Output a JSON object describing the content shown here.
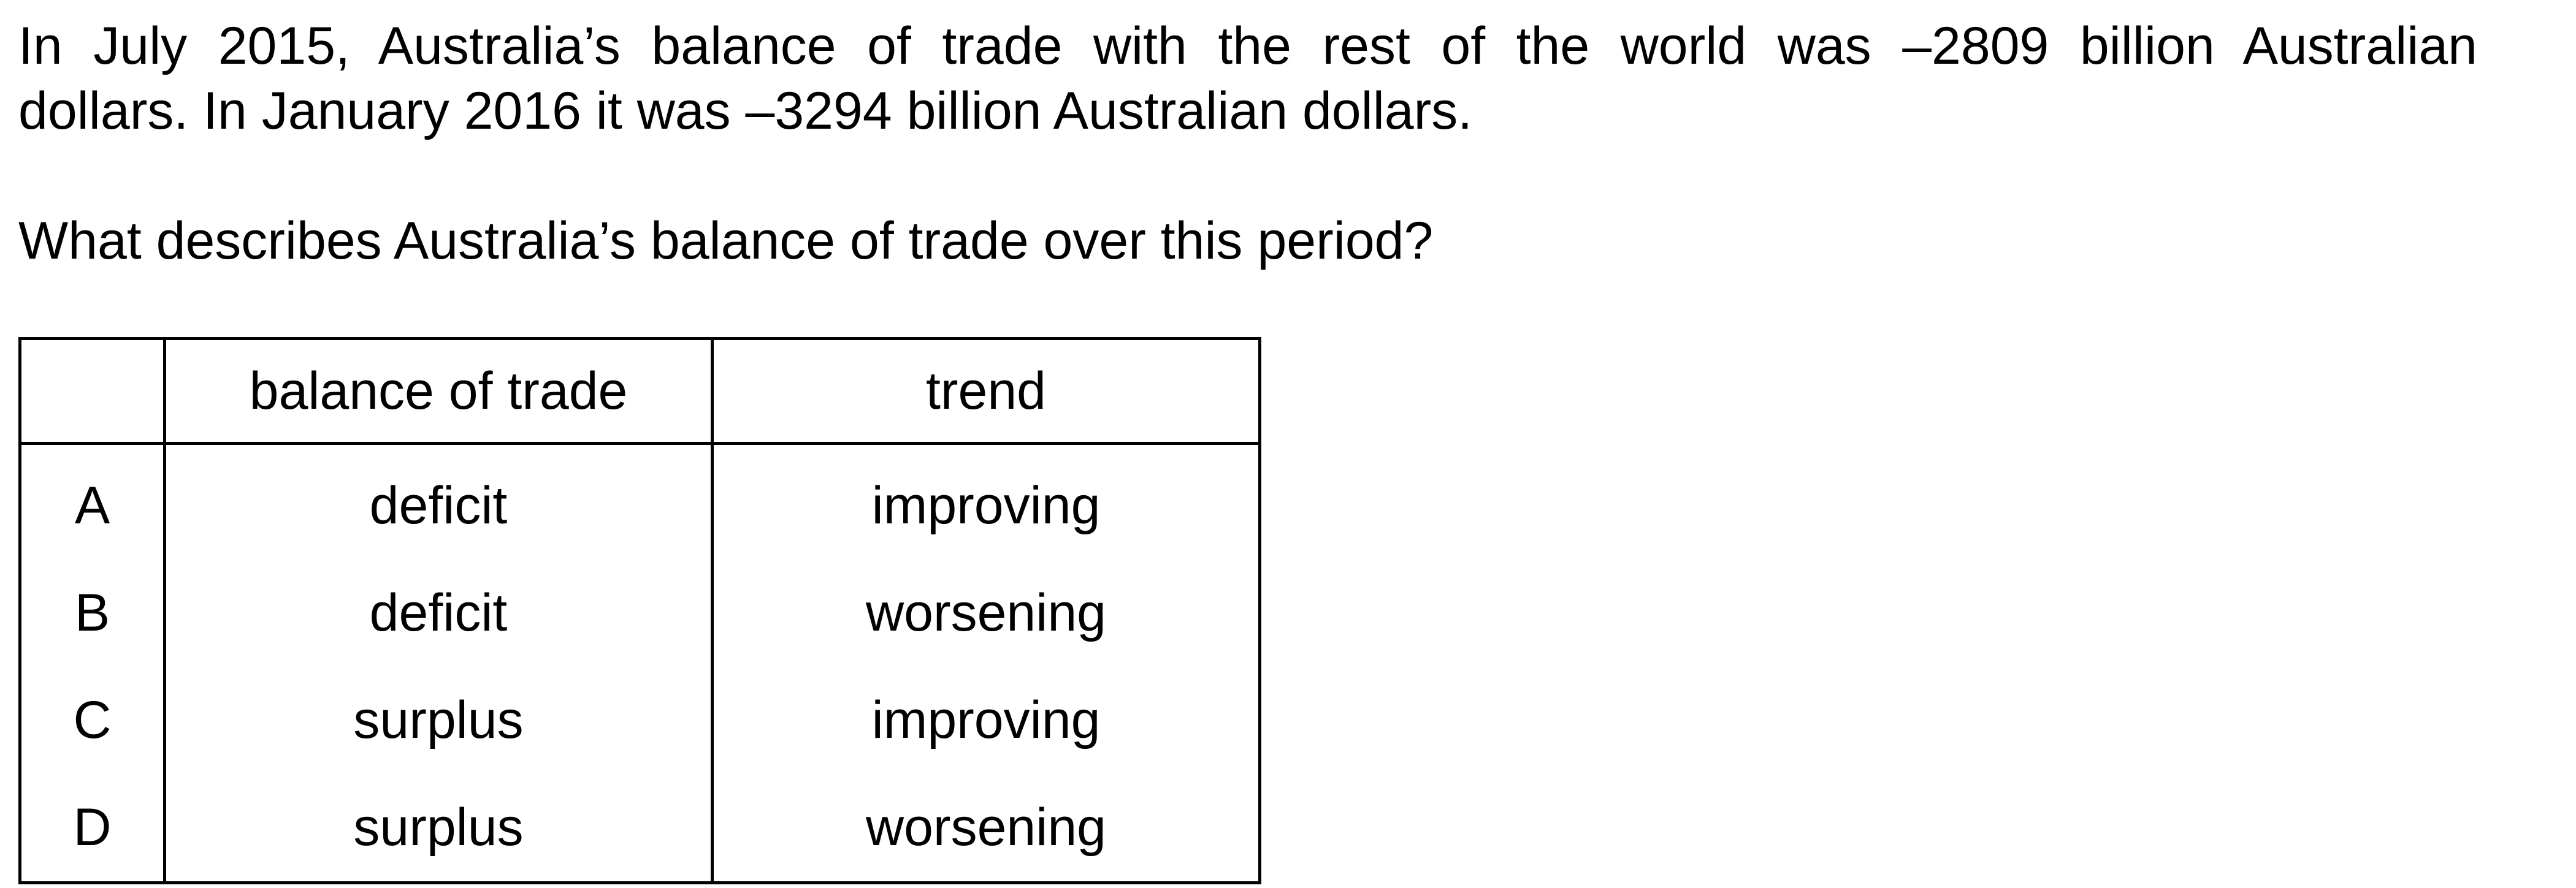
{
  "intro": {
    "line1": "In July 2015, Australia’s balance of trade with the rest of the world was –2809 billion Australian",
    "line2": "dollars. In January 2016 it was –3294 billion Australian dollars."
  },
  "question": "What describes Australia’s balance of trade over this period?",
  "table": {
    "headers": {
      "letter": "",
      "balance": "balance of trade",
      "trend": "trend"
    },
    "rows": [
      {
        "letter": "A",
        "balance": "deficit",
        "trend": "improving"
      },
      {
        "letter": "B",
        "balance": "deficit",
        "trend": "worsening"
      },
      {
        "letter": "C",
        "balance": "surplus",
        "trend": "improving"
      },
      {
        "letter": "D",
        "balance": "surplus",
        "trend": "worsening"
      }
    ]
  }
}
